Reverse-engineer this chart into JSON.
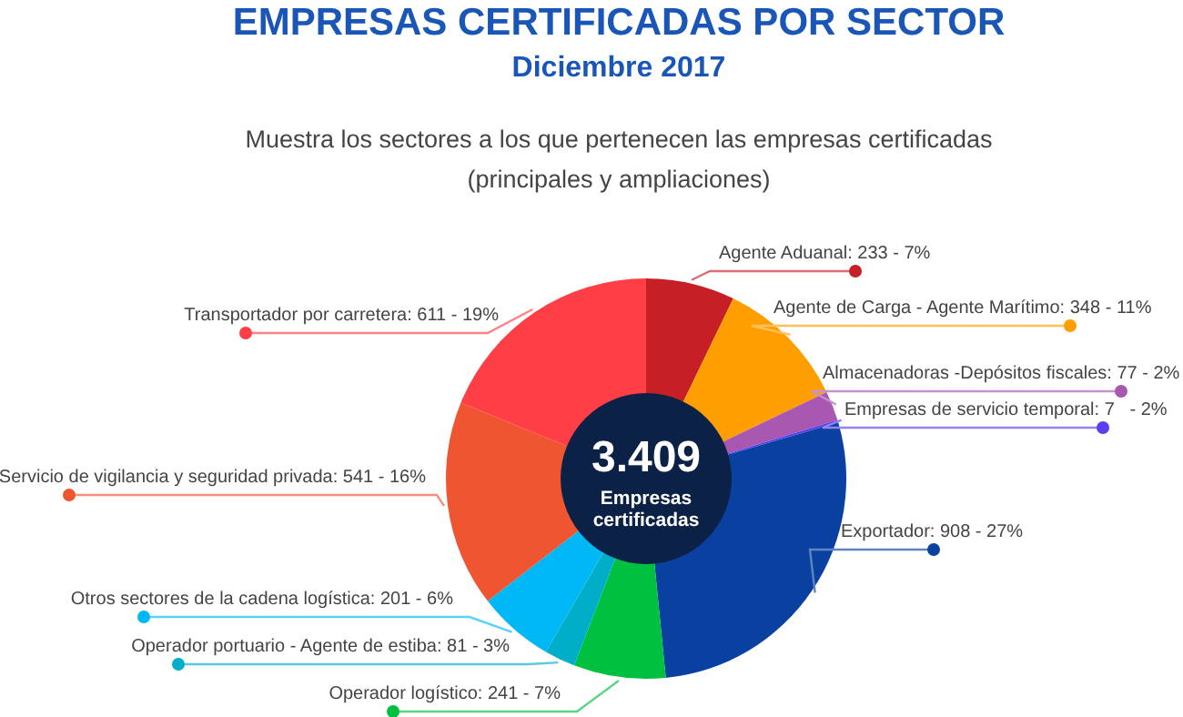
{
  "chart_data": {
    "type": "donut",
    "title": "EMPRESAS CERTIFICADAS POR SECTOR",
    "subtitle": "Diciembre 2017",
    "annotations": [
      "Muestra los sectores a los que pertenecen las empresas certificadas (principales y ampliaciones)",
      "3.409",
      "Empresas certificadas"
    ],
    "categories": [
      "Agente Aduanal",
      "Agente de Carga - Agente Marítimo",
      "Almacenadoras -Depósitos fiscales",
      "Empresas de servicio temporal",
      "Exportador",
      "Operador logístico",
      "Operador portuario - Agente de estiba",
      "Otros sectores de la cadena logística",
      "Servicio de vigilancia y seguridad privada",
      "Transportador por carretera"
    ],
    "values": [
      233,
      348,
      77,
      7,
      908,
      241,
      81,
      201,
      541,
      611
    ],
    "value_labels": [
      "233 - 7%",
      "348 - 11%",
      "77 - 2%",
      "7   - 2%",
      "908 - 27%",
      "241 - 7%",
      "81 - 3%",
      "201 - 6%",
      "541 - 16%",
      "611 - 19%"
    ],
    "colors": [
      "#c62026",
      "#ff9e00",
      "#a858b0",
      "#5a3ff0",
      "#0a41a0",
      "#00c040",
      "#00aec8",
      "#00b8f5",
      "#f05532",
      "#ff3f45"
    ]
  }
}
